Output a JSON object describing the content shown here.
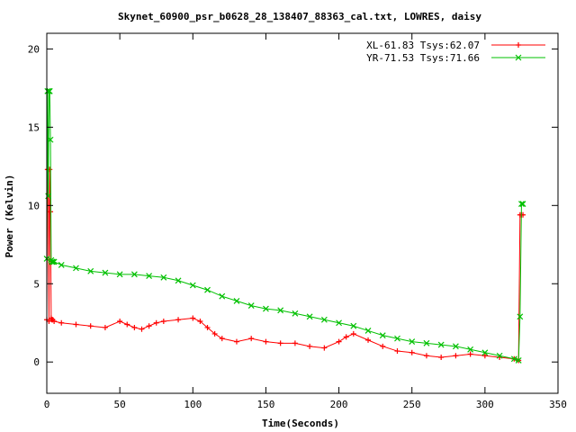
{
  "chart_data": {
    "type": "line",
    "title": "Skynet_60900_psr_b0628_28_138407_88363_cal.txt, LOWRES, daisy",
    "xlabel": "Time(Seconds)",
    "ylabel": "Power (Kelvin)",
    "xlim": [
      0,
      350
    ],
    "ylim": [
      -2,
      21
    ],
    "xticks": [
      0,
      50,
      100,
      150,
      200,
      250,
      300,
      350
    ],
    "yticks": [
      0,
      5,
      10,
      15,
      20
    ],
    "grid": false,
    "legend_position": "top-right",
    "series": [
      {
        "name": "XL-61.83 Tsys:62.07",
        "color": "#ff0000",
        "marker": "plus",
        "x": [
          0,
          0.5,
          1.0,
          1.5,
          2.0,
          2.5,
          3.0,
          3.5,
          4.0,
          5,
          10,
          20,
          30,
          40,
          50,
          55,
          60,
          65,
          70,
          75,
          80,
          90,
          100,
          105,
          110,
          115,
          120,
          130,
          140,
          150,
          160,
          170,
          180,
          190,
          200,
          205,
          210,
          220,
          230,
          240,
          250,
          260,
          270,
          280,
          290,
          300,
          310,
          320,
          323,
          324,
          325,
          326
        ],
        "y": [
          2.7,
          12.3,
          12.3,
          2.6,
          12.3,
          9.6,
          2.8,
          2.7,
          2.7,
          2.6,
          2.5,
          2.4,
          2.3,
          2.2,
          2.6,
          2.4,
          2.2,
          2.1,
          2.3,
          2.5,
          2.6,
          2.7,
          2.8,
          2.6,
          2.2,
          1.8,
          1.5,
          1.3,
          1.5,
          1.3,
          1.2,
          1.2,
          1.0,
          0.9,
          1.3,
          1.6,
          1.8,
          1.4,
          1.0,
          0.7,
          0.6,
          0.4,
          0.3,
          0.4,
          0.5,
          0.4,
          0.3,
          0.2,
          0.1,
          9.4,
          9.4,
          9.4
        ]
      },
      {
        "name": "YR-71.53 Tsys:71.66",
        "color": "#00c000",
        "marker": "cross",
        "x": [
          0,
          0.5,
          1.0,
          1.5,
          2.0,
          2.5,
          3.0,
          3.5,
          4.0,
          5,
          10,
          20,
          30,
          40,
          50,
          60,
          70,
          80,
          90,
          100,
          110,
          120,
          130,
          140,
          150,
          160,
          170,
          180,
          190,
          200,
          210,
          220,
          230,
          240,
          250,
          260,
          270,
          280,
          290,
          300,
          310,
          320,
          323,
          324,
          325,
          326
        ],
        "y": [
          6.6,
          17.3,
          10.6,
          17.3,
          17.3,
          14.2,
          6.5,
          6.4,
          6.4,
          6.4,
          6.2,
          6.0,
          5.8,
          5.7,
          5.6,
          5.6,
          5.5,
          5.4,
          5.2,
          4.9,
          4.6,
          4.2,
          3.9,
          3.6,
          3.4,
          3.3,
          3.1,
          2.9,
          2.7,
          2.5,
          2.3,
          2.0,
          1.7,
          1.5,
          1.3,
          1.2,
          1.1,
          1.0,
          0.8,
          0.6,
          0.4,
          0.2,
          0.1,
          2.9,
          10.1,
          10.1
        ]
      }
    ]
  }
}
